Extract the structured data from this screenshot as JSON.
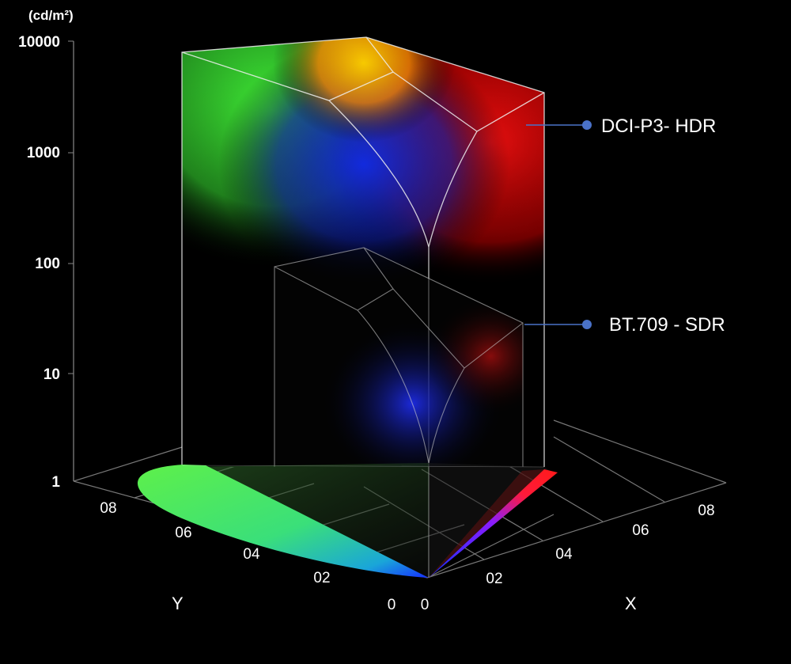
{
  "chart_data": {
    "type": "diagram",
    "unit_label": "(cd/m²)",
    "luminance_ticks": [
      "10000",
      "1000",
      "100",
      "10",
      "1"
    ],
    "y_ticks": [
      "08",
      "06",
      "04",
      "02",
      "0"
    ],
    "x_ticks": [
      "0",
      "02",
      "04",
      "06",
      "08"
    ],
    "x_axis_label": "X",
    "y_axis_label": "Y",
    "volumes": [
      {
        "name": "DCI-P3- HDR",
        "peak_luminance": 10000
      },
      {
        "name": "BT.709 - SDR",
        "peak_luminance": 100
      }
    ]
  },
  "colors": {
    "background": "#000000",
    "callout": "#4a72c8",
    "green": "#3ee83a",
    "red": "#ff1a1a",
    "blue": "#1a3cff"
  }
}
